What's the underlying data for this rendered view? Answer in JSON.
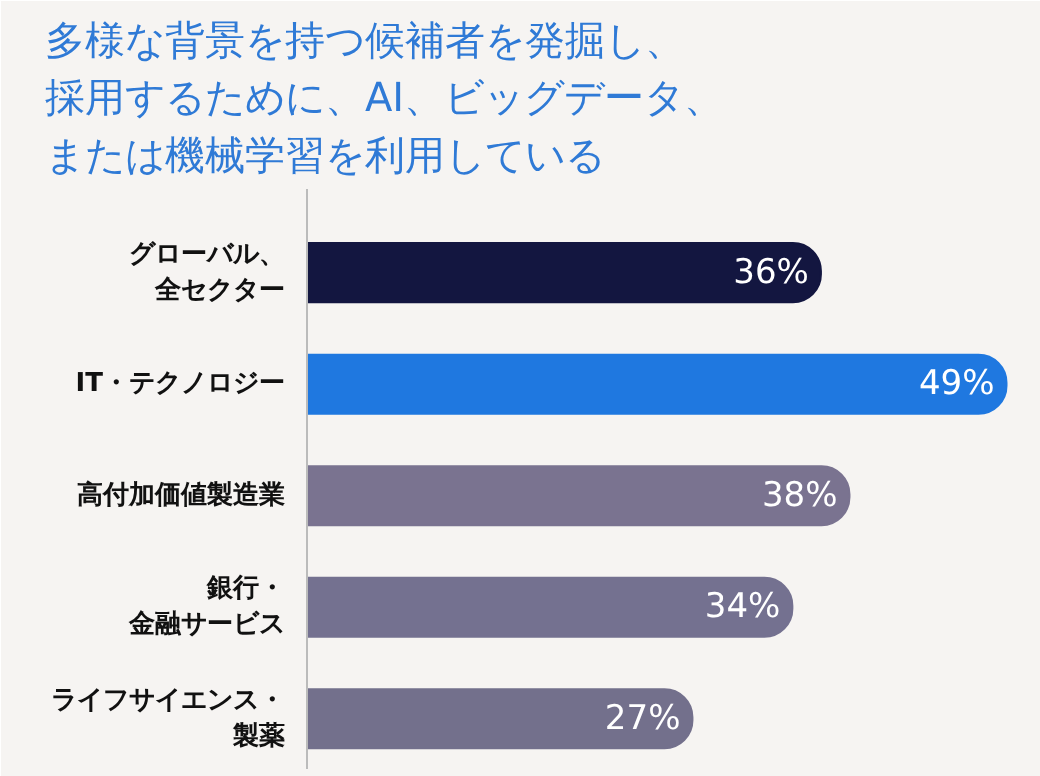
{
  "chart_data": {
    "type": "bar",
    "orientation": "horizontal",
    "title": "多様な背景を持つ候補者を発掘し、採用するために、AI、ビッグデータ、または機械学習を利用している",
    "categories": [
      "グローバル、全セクター",
      "IT・テクノロジー",
      "高付加価値製造業",
      "銀行・金融サービス",
      "ライフサイエンス・製薬"
    ],
    "values": [
      36,
      49,
      38,
      34,
      27
    ],
    "value_labels": [
      "36%",
      "49%",
      "38%",
      "34%",
      "27%"
    ],
    "colors": [
      "#131640",
      "#1f78e0",
      "#7a7390",
      "#747190",
      "#73708c"
    ],
    "grid": false
  }
}
